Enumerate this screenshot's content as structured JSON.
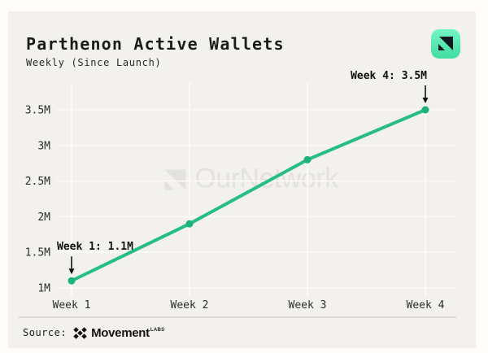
{
  "card": {
    "title": "Parthenon Active Wallets",
    "subtitle": "Weekly (Since Launch)"
  },
  "badge": {
    "icon": "ournetwork-logo",
    "bg_from": "#73f5c3",
    "bg_to": "#41dda1",
    "glyph_color": "#111820"
  },
  "watermark": {
    "text": "OurNetwork",
    "color": "#e3e2df"
  },
  "chart_data": {
    "type": "line",
    "title": "Parthenon Active Wallets",
    "subtitle": "Weekly (Since Launch)",
    "categories": [
      "Week 1",
      "Week 2",
      "Week 3",
      "Week 4"
    ],
    "series": [
      {
        "name": "Parthenon Active Wallets",
        "unit": "M",
        "values": [
          1.1,
          1.9,
          2.8,
          3.5
        ]
      }
    ],
    "y_ticks": [
      {
        "value": 1,
        "label": "1M"
      },
      {
        "value": 1.5,
        "label": "1.5M"
      },
      {
        "value": 2,
        "label": "2M"
      },
      {
        "value": 2.5,
        "label": "2.5M"
      },
      {
        "value": 3,
        "label": "3M"
      },
      {
        "value": 3.5,
        "label": "3.5M"
      }
    ],
    "ylim_millions": [
      1,
      3.5
    ],
    "grid": true,
    "legend": "none",
    "annotations": [
      {
        "point_index": 0,
        "label": "Week 1: 1.1M",
        "anchor": "start"
      },
      {
        "point_index": 3,
        "label": "Week 4: 3.5M",
        "anchor": "end"
      }
    ],
    "line_color": "#27bd88",
    "point_color": "#1db17c",
    "gridline_color": "#fbfaf7",
    "axis_text_color": "#2d2d2d",
    "annotation_arrow_color": "#111111"
  },
  "footer": {
    "source_label": "Source:",
    "source_name": "Movement",
    "source_suffix": "LABS"
  }
}
